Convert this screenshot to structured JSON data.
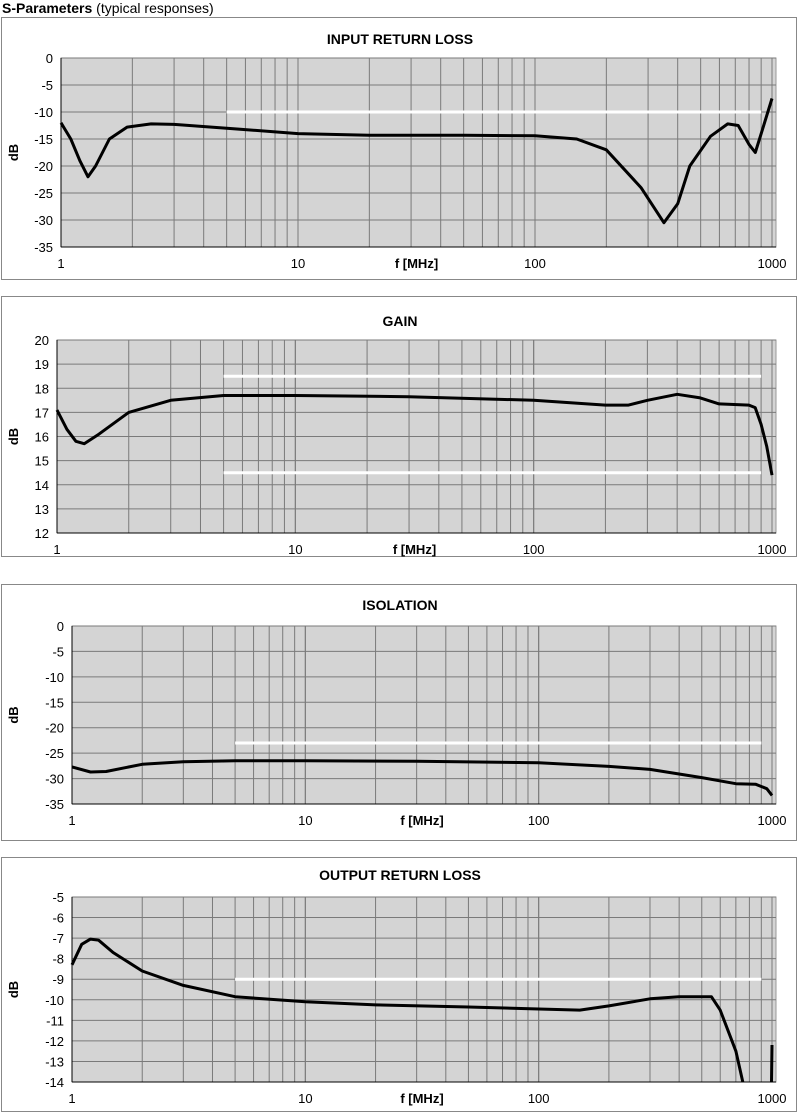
{
  "heading": {
    "bold": "S-Parameters",
    "normal": "(typical responses)"
  },
  "chart_data": [
    {
      "type": "line",
      "title": "INPUT RETURN LOSS",
      "xlabel": "f [MHz]",
      "ylabel": "dB",
      "xscale": "log",
      "xlim": [
        1,
        1000
      ],
      "ylim": [
        -35,
        0
      ],
      "xticks": [
        1,
        10,
        100,
        1000
      ],
      "yticks": [
        0,
        -5,
        -10,
        -15,
        -20,
        -25,
        -30,
        -35
      ],
      "grid": true,
      "limit_lines": [
        {
          "y": -10,
          "x": [
            5,
            900
          ],
          "color": "#ffffff"
        }
      ],
      "x": [
        1,
        1.1,
        1.2,
        1.3,
        1.4,
        1.6,
        1.9,
        2.4,
        3,
        5,
        10,
        20,
        50,
        100,
        150,
        200,
        280,
        350,
        400,
        450,
        550,
        650,
        720,
        800,
        850,
        900,
        1000
      ],
      "values": [
        -12,
        -15,
        -19,
        -22,
        -20,
        -15,
        -12.8,
        -12.2,
        -12.3,
        -13,
        -14,
        -14.3,
        -14.3,
        -14.4,
        -15,
        -17,
        -24,
        -30.5,
        -27,
        -20,
        -14.5,
        -12.2,
        -12.5,
        -16,
        -17.5,
        -14,
        -7.5
      ]
    },
    {
      "type": "line",
      "title": "GAIN",
      "xlabel": "f [MHz]",
      "ylabel": "dB",
      "xscale": "log",
      "xlim": [
        1,
        1000
      ],
      "ylim": [
        12,
        20
      ],
      "xticks": [
        1,
        10,
        100,
        1000
      ],
      "yticks": [
        20,
        19,
        18,
        17,
        16,
        15,
        14,
        13,
        12
      ],
      "grid": true,
      "limit_lines": [
        {
          "y": 18.5,
          "x": [
            5,
            900
          ],
          "color": "#ffffff"
        },
        {
          "y": 14.5,
          "x": [
            5,
            900
          ],
          "color": "#ffffff"
        }
      ],
      "x": [
        1,
        1.1,
        1.2,
        1.3,
        1.5,
        2,
        3,
        5,
        10,
        30,
        100,
        200,
        250,
        300,
        400,
        500,
        600,
        800,
        850,
        900,
        950,
        1000
      ],
      "values": [
        17.1,
        16.3,
        15.8,
        15.7,
        16.1,
        17,
        17.5,
        17.7,
        17.7,
        17.65,
        17.5,
        17.3,
        17.3,
        17.5,
        17.75,
        17.6,
        17.35,
        17.3,
        17.2,
        16.5,
        15.6,
        14.4
      ]
    },
    {
      "type": "line",
      "title": "ISOLATION",
      "xlabel": "f [MHz]",
      "ylabel": "dB",
      "xscale": "log",
      "xlim": [
        1,
        1000
      ],
      "ylim": [
        -35,
        0
      ],
      "xticks": [
        1,
        10,
        100,
        1000
      ],
      "yticks": [
        0,
        -5,
        -10,
        -15,
        -20,
        -25,
        -30,
        -35
      ],
      "grid": true,
      "limit_lines": [
        {
          "y": -23,
          "x": [
            5,
            900
          ],
          "color": "#ffffff"
        }
      ],
      "x": [
        1,
        1.2,
        1.4,
        2,
        3,
        5,
        10,
        30,
        100,
        200,
        300,
        500,
        700,
        850,
        950,
        1000
      ],
      "values": [
        -27.7,
        -28.7,
        -28.6,
        -27.2,
        -26.7,
        -26.5,
        -26.5,
        -26.6,
        -26.9,
        -27.6,
        -28.2,
        -29.8,
        -31,
        -31.1,
        -32,
        -33.3
      ]
    },
    {
      "type": "line",
      "title": "OUTPUT RETURN LOSS",
      "xlabel": "f [MHz]",
      "ylabel": "dB",
      "xscale": "log",
      "xlim": [
        1,
        1000
      ],
      "ylim": [
        -14,
        -5
      ],
      "xticks": [
        1,
        10,
        100,
        1000
      ],
      "yticks": [
        -5,
        -6,
        -7,
        -8,
        -9,
        -10,
        -11,
        -12,
        -13,
        -14
      ],
      "grid": true,
      "limit_lines": [
        {
          "y": -9,
          "x": [
            5,
            900
          ],
          "color": "#ffffff"
        }
      ],
      "x": [
        1,
        1.1,
        1.2,
        1.3,
        1.5,
        2,
        3,
        5,
        10,
        20,
        50,
        100,
        150,
        200,
        300,
        400,
        550,
        600,
        700,
        750,
        null,
        995,
        1000
      ],
      "values": [
        -8.3,
        -7.3,
        -7.05,
        -7.1,
        -7.7,
        -8.6,
        -9.3,
        -9.85,
        -10.1,
        -10.25,
        -10.35,
        -10.45,
        -10.5,
        -10.3,
        -9.95,
        -9.85,
        -9.85,
        -10.5,
        -12.5,
        -14,
        null,
        -14,
        -12.2
      ]
    }
  ]
}
